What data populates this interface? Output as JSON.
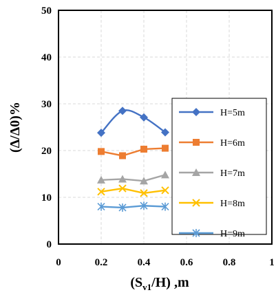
{
  "chart_data": {
    "type": "line",
    "xlabel": {
      "base": "(S",
      "sub": "v1",
      "rest": "/H) ,m"
    },
    "ylabel": "(Δ/Δ0)%",
    "xlim": [
      0,
      1
    ],
    "ylim": [
      0,
      50
    ],
    "x_ticks": [
      "0",
      "0.2",
      "0.4",
      "0.6",
      "0.8",
      "1"
    ],
    "y_ticks": [
      "0",
      "10",
      "20",
      "30",
      "40",
      "50"
    ],
    "grid": "dashed",
    "legend_position": "right",
    "x": [
      0.2,
      0.3,
      0.4,
      0.5
    ],
    "series": [
      {
        "name": "H=5m",
        "values": [
          23.8,
          28.5,
          27.1,
          23.9
        ],
        "color": "#4472C4",
        "marker": "diamond",
        "smooth": true
      },
      {
        "name": "H=6m",
        "values": [
          19.8,
          18.9,
          20.3,
          20.5
        ],
        "color": "#ED7D31",
        "marker": "square",
        "smooth": false
      },
      {
        "name": "H=7m",
        "values": [
          13.7,
          13.9,
          13.5,
          14.8
        ],
        "color": "#A5A5A5",
        "marker": "triangle",
        "smooth": false
      },
      {
        "name": "H=8m",
        "values": [
          11.2,
          11.9,
          10.9,
          11.5
        ],
        "color": "#FFC000",
        "marker": "x",
        "smooth": false
      },
      {
        "name": "H=9m",
        "values": [
          8.0,
          7.8,
          8.2,
          8.0
        ],
        "color": "#5B9BD5",
        "marker": "asterisk",
        "smooth": false
      }
    ]
  }
}
